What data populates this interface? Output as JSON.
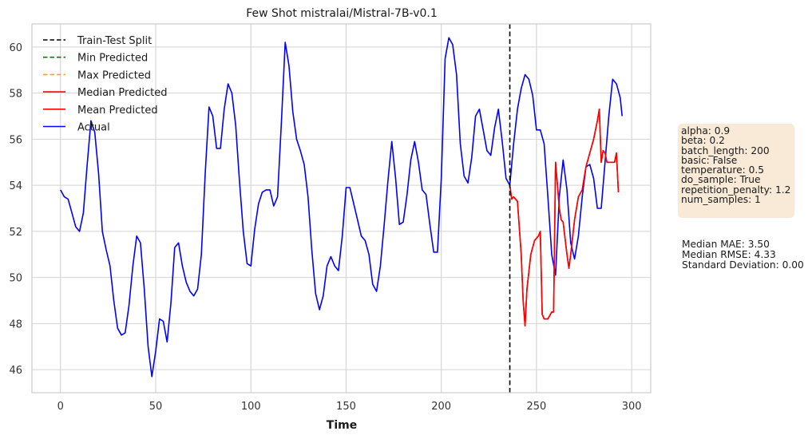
{
  "chart_data": {
    "type": "line",
    "title": "Few Shot mistralai/Mistral-7B-v0.1",
    "xlabel": "Time",
    "ylabel": "",
    "xlim": [
      -15,
      310
    ],
    "ylim": [
      45,
      61
    ],
    "xticks": [
      0,
      50,
      100,
      150,
      200,
      250,
      300
    ],
    "yticks": [
      46,
      48,
      50,
      52,
      54,
      56,
      58,
      60
    ],
    "grid": true,
    "legend_position": "top-left",
    "split_x": 236,
    "legend": [
      {
        "label": "Train-Test Split",
        "color": "#000000",
        "dash": true
      },
      {
        "label": "Min Predicted",
        "color": "#008000",
        "dash": true
      },
      {
        "label": "Max Predicted",
        "color": "#ffa500",
        "dash": true
      },
      {
        "label": "Median Predicted",
        "color": "#ff0000",
        "dash": false
      },
      {
        "label": "Mean Predicted",
        "color": "#ff0000",
        "dash": false
      },
      {
        "label": "Actual",
        "color": "#0000ff",
        "dash": false
      }
    ],
    "series": [
      {
        "name": "Actual",
        "color": "#0000ff",
        "points": [
          [
            0,
            53.8
          ],
          [
            2,
            53.5
          ],
          [
            4,
            53.4
          ],
          [
            6,
            52.8
          ],
          [
            8,
            52.2
          ],
          [
            10,
            52.0
          ],
          [
            12,
            52.8
          ],
          [
            14,
            54.9
          ],
          [
            16,
            56.8
          ],
          [
            18,
            56.3
          ],
          [
            20,
            54.5
          ],
          [
            22,
            52.0
          ],
          [
            24,
            51.2
          ],
          [
            26,
            50.5
          ],
          [
            28,
            49.0
          ],
          [
            30,
            47.8
          ],
          [
            32,
            47.5
          ],
          [
            34,
            47.6
          ],
          [
            36,
            48.8
          ],
          [
            38,
            50.5
          ],
          [
            40,
            51.8
          ],
          [
            42,
            51.5
          ],
          [
            44,
            49.5
          ],
          [
            46,
            47.0
          ],
          [
            48,
            45.7
          ],
          [
            50,
            46.8
          ],
          [
            52,
            48.2
          ],
          [
            54,
            48.1
          ],
          [
            56,
            47.2
          ],
          [
            58,
            48.9
          ],
          [
            60,
            51.3
          ],
          [
            62,
            51.5
          ],
          [
            64,
            50.5
          ],
          [
            66,
            49.8
          ],
          [
            68,
            49.4
          ],
          [
            70,
            49.2
          ],
          [
            72,
            49.5
          ],
          [
            74,
            51.0
          ],
          [
            76,
            54.5
          ],
          [
            78,
            57.4
          ],
          [
            80,
            57.0
          ],
          [
            82,
            55.6
          ],
          [
            84,
            55.6
          ],
          [
            86,
            57.3
          ],
          [
            88,
            58.4
          ],
          [
            90,
            58.0
          ],
          [
            92,
            56.6
          ],
          [
            94,
            54.2
          ],
          [
            96,
            52.0
          ],
          [
            98,
            50.6
          ],
          [
            100,
            50.5
          ],
          [
            102,
            52.1
          ],
          [
            104,
            53.2
          ],
          [
            106,
            53.7
          ],
          [
            108,
            53.8
          ],
          [
            110,
            53.8
          ],
          [
            112,
            53.1
          ],
          [
            114,
            53.5
          ],
          [
            116,
            56.7
          ],
          [
            118,
            60.2
          ],
          [
            120,
            59.2
          ],
          [
            122,
            57.2
          ],
          [
            124,
            56.0
          ],
          [
            126,
            55.5
          ],
          [
            128,
            54.9
          ],
          [
            130,
            53.5
          ],
          [
            132,
            51.2
          ],
          [
            134,
            49.3
          ],
          [
            136,
            48.6
          ],
          [
            138,
            49.2
          ],
          [
            140,
            50.5
          ],
          [
            142,
            50.9
          ],
          [
            144,
            50.5
          ],
          [
            146,
            50.3
          ],
          [
            148,
            51.8
          ],
          [
            150,
            53.9
          ],
          [
            152,
            53.9
          ],
          [
            154,
            53.2
          ],
          [
            156,
            52.5
          ],
          [
            158,
            51.8
          ],
          [
            160,
            51.6
          ],
          [
            162,
            51.0
          ],
          [
            164,
            49.7
          ],
          [
            166,
            49.4
          ],
          [
            168,
            50.5
          ],
          [
            170,
            52.3
          ],
          [
            172,
            54.2
          ],
          [
            174,
            55.9
          ],
          [
            176,
            54.3
          ],
          [
            178,
            52.3
          ],
          [
            180,
            52.4
          ],
          [
            182,
            53.6
          ],
          [
            184,
            55.1
          ],
          [
            186,
            55.9
          ],
          [
            188,
            55.0
          ],
          [
            190,
            53.8
          ],
          [
            192,
            53.6
          ],
          [
            194,
            52.3
          ],
          [
            196,
            51.1
          ],
          [
            198,
            51.1
          ],
          [
            200,
            54.3
          ],
          [
            202,
            59.5
          ],
          [
            204,
            60.4
          ],
          [
            206,
            60.1
          ],
          [
            208,
            58.8
          ],
          [
            210,
            55.8
          ],
          [
            212,
            54.4
          ],
          [
            214,
            54.1
          ],
          [
            216,
            55.2
          ],
          [
            218,
            57.0
          ],
          [
            220,
            57.3
          ],
          [
            222,
            56.4
          ],
          [
            224,
            55.5
          ],
          [
            226,
            55.3
          ],
          [
            228,
            56.5
          ],
          [
            230,
            57.3
          ],
          [
            232,
            55.9
          ],
          [
            234,
            54.3
          ],
          [
            236,
            54.0
          ],
          [
            238,
            55.8
          ],
          [
            240,
            57.3
          ],
          [
            242,
            58.2
          ],
          [
            244,
            58.8
          ],
          [
            246,
            58.6
          ],
          [
            248,
            57.9
          ],
          [
            250,
            56.4
          ],
          [
            252,
            56.4
          ],
          [
            254,
            55.8
          ],
          [
            256,
            53.5
          ],
          [
            258,
            51.0
          ],
          [
            260,
            50.1
          ],
          [
            262,
            53.5
          ],
          [
            264,
            55.1
          ],
          [
            266,
            53.8
          ],
          [
            268,
            51.5
          ],
          [
            270,
            50.8
          ],
          [
            272,
            51.8
          ],
          [
            274,
            53.5
          ],
          [
            276,
            54.8
          ],
          [
            278,
            54.9
          ],
          [
            280,
            54.3
          ],
          [
            282,
            53.0
          ],
          [
            284,
            53.0
          ],
          [
            286,
            55.0
          ],
          [
            288,
            57.0
          ],
          [
            290,
            58.6
          ],
          [
            292,
            58.4
          ],
          [
            294,
            57.8
          ],
          [
            295,
            57.0
          ]
        ]
      },
      {
        "name": "Median Predicted",
        "color": "#ff0000",
        "points": [
          [
            236,
            54.0
          ],
          [
            237,
            53.4
          ],
          [
            238,
            53.5
          ],
          [
            240,
            53.3
          ],
          [
            242,
            51.0
          ],
          [
            243,
            49.0
          ],
          [
            244,
            47.9
          ],
          [
            245,
            49.5
          ],
          [
            247,
            51.0
          ],
          [
            249,
            51.6
          ],
          [
            251,
            51.8
          ],
          [
            252,
            52.0
          ],
          [
            253,
            48.4
          ],
          [
            254,
            48.2
          ],
          [
            256,
            48.2
          ],
          [
            258,
            48.5
          ],
          [
            259,
            48.5
          ],
          [
            260,
            55.0
          ],
          [
            261,
            54.0
          ],
          [
            262,
            53.0
          ],
          [
            263,
            52.5
          ],
          [
            264,
            52.4
          ],
          [
            266,
            51.0
          ],
          [
            267,
            50.4
          ],
          [
            268,
            51.0
          ],
          [
            270,
            52.5
          ],
          [
            272,
            53.5
          ],
          [
            274,
            53.8
          ],
          [
            276,
            54.8
          ],
          [
            278,
            55.4
          ],
          [
            280,
            56.0
          ],
          [
            282,
            56.8
          ],
          [
            283,
            57.3
          ],
          [
            284,
            55.0
          ],
          [
            285,
            55.5
          ],
          [
            286,
            55.4
          ],
          [
            287,
            55.0
          ],
          [
            289,
            55.0
          ],
          [
            291,
            55.0
          ],
          [
            292,
            55.4
          ],
          [
            293,
            53.7
          ]
        ]
      },
      {
        "name": "Mean Predicted",
        "color": "#ff0000",
        "points": [
          [
            236,
            54.0
          ],
          [
            237,
            53.4
          ],
          [
            238,
            53.5
          ],
          [
            240,
            53.3
          ],
          [
            242,
            51.0
          ],
          [
            243,
            49.0
          ],
          [
            244,
            47.9
          ],
          [
            245,
            49.5
          ],
          [
            247,
            51.0
          ],
          [
            249,
            51.6
          ],
          [
            251,
            51.8
          ],
          [
            252,
            52.0
          ],
          [
            253,
            48.4
          ],
          [
            254,
            48.2
          ],
          [
            256,
            48.2
          ],
          [
            258,
            48.5
          ],
          [
            259,
            48.5
          ],
          [
            260,
            55.0
          ],
          [
            261,
            54.0
          ],
          [
            262,
            53.0
          ],
          [
            263,
            52.5
          ],
          [
            264,
            52.4
          ],
          [
            266,
            51.0
          ],
          [
            267,
            50.4
          ],
          [
            268,
            51.0
          ],
          [
            270,
            52.5
          ],
          [
            272,
            53.5
          ],
          [
            274,
            53.8
          ],
          [
            276,
            54.8
          ],
          [
            278,
            55.4
          ],
          [
            280,
            56.0
          ],
          [
            282,
            56.8
          ],
          [
            283,
            57.3
          ],
          [
            284,
            55.0
          ],
          [
            285,
            55.5
          ],
          [
            286,
            55.4
          ],
          [
            287,
            55.0
          ],
          [
            289,
            55.0
          ],
          [
            291,
            55.0
          ],
          [
            292,
            55.4
          ],
          [
            293,
            53.7
          ]
        ]
      }
    ]
  },
  "info_box": {
    "lines": [
      "alpha: 0.9",
      "beta: 0.2",
      "batch_length: 200",
      "basic: False",
      "temperature: 0.5",
      "do_sample: True",
      "repetition_penalty: 1.2",
      "num_samples: 1"
    ]
  },
  "metrics": {
    "lines": [
      "Median MAE: 3.50",
      "Median RMSE: 4.33",
      "Standard Deviation: 0.00"
    ]
  }
}
